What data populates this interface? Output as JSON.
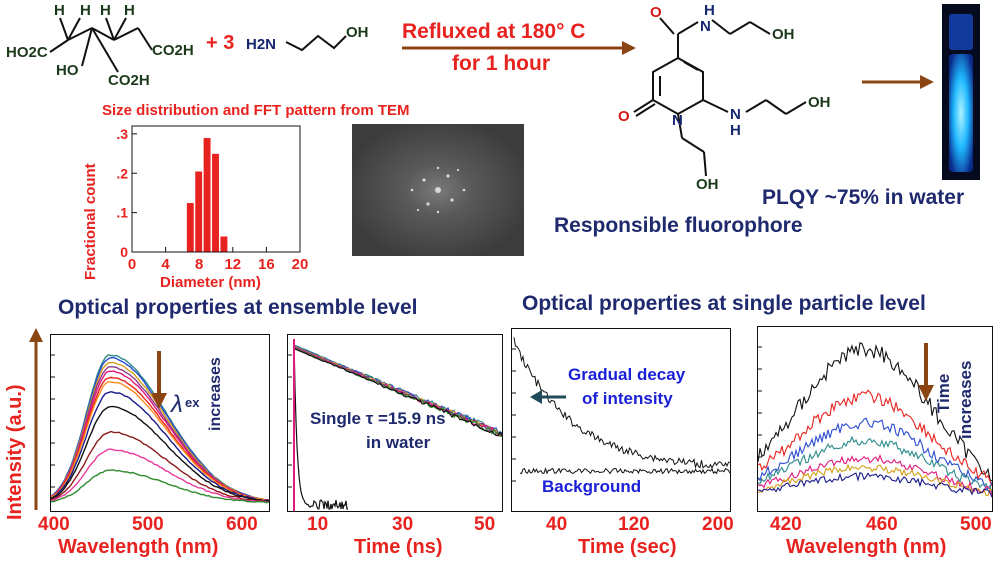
{
  "reaction": {
    "reagent_plus": "+ 3",
    "condition_line1": "Refluxed at 180° C",
    "condition_line2": "for 1 hour"
  },
  "citric_acid": {
    "h1": "H",
    "h2": "H",
    "h3": "H",
    "h4": "H",
    "ho2c": "HO2C",
    "oh": "HO",
    "co2h_right": "CO2H",
    "co2h_bottom": "CO2H"
  },
  "ethanolamine": {
    "h2n": "H2N",
    "oh": "OH"
  },
  "fluorophore": {
    "o_top": "O",
    "n_h": "H",
    "n": "N",
    "oh_top": "OH",
    "o_left": "O",
    "n_ring": "N",
    "n_h2": "H",
    "n2": "N",
    "oh_right": "OH",
    "oh_bottom": "OH",
    "caption": "Responsible fluorophore"
  },
  "vial": {
    "plqy": "PLQY ~75% in water"
  },
  "tem": {
    "title": "Size distribution and FFT pattern from TEM"
  },
  "histogram": {
    "ylabel": "Fractional count",
    "xlabel": "Diameter (nm)",
    "xticks": [
      "0",
      "4",
      "8",
      "12",
      "16",
      "20"
    ],
    "yticks": [
      "0",
      ".1",
      ".2",
      ".3"
    ]
  },
  "ensemble_title": "Optical properties at ensemble level",
  "single_title": "Optical properties at single particle level",
  "y_axis_label": "Intensity (a.u.)",
  "panel1": {
    "xticks": [
      "400",
      "500",
      "600"
    ],
    "xlabel": "Wavelength (nm)",
    "lambda": "λ",
    "ex": "ex",
    "increases": "increases"
  },
  "panel2": {
    "xticks": [
      "10",
      "30",
      "50"
    ],
    "xlabel": "Time (ns)",
    "line1": "Single τ =15.9 ns",
    "line2": "in water"
  },
  "panel3": {
    "xticks": [
      "40",
      "120",
      "200"
    ],
    "xlabel": "Time (sec)",
    "decay1": "Gradual decay",
    "decay2": "of intensity",
    "background": "Background"
  },
  "panel4": {
    "xticks": [
      "420",
      "460",
      "500"
    ],
    "xlabel": "Wavelength (nm)",
    "time": "Time",
    "increases": "increases"
  },
  "chart_data": [
    {
      "type": "bar",
      "title": "Size distribution and FFT pattern from TEM",
      "xlabel": "Diameter (nm)",
      "ylabel": "Fractional count",
      "xlim": [
        0,
        20
      ],
      "ylim": [
        0,
        0.32
      ],
      "x": [
        7,
        8,
        9,
        10,
        11
      ],
      "values": [
        0.125,
        0.205,
        0.29,
        0.25,
        0.04
      ]
    },
    {
      "type": "line",
      "xlabel": "Wavelength (nm)",
      "xlim": [
        385,
        625
      ],
      "series": [
        {
          "color": "#2e8b8b",
          "peak": 1.0
        },
        {
          "color": "#2a4bd0",
          "peak": 0.98
        },
        {
          "color": "#d4a017",
          "peak": 0.95
        },
        {
          "color": "#8b3a8b",
          "peak": 0.92
        },
        {
          "color": "#e0197d",
          "peak": 0.89
        },
        {
          "color": "#e8231f",
          "peak": 0.85
        },
        {
          "color": "#ff8c1a",
          "peak": 0.82
        },
        {
          "color": "#1a1a8b",
          "peak": 0.75
        },
        {
          "color": "#111111",
          "peak": 0.65
        },
        {
          "color": "#8b1a1a",
          "peak": 0.48
        },
        {
          "color": "#e83a9c",
          "peak": 0.36
        },
        {
          "color": "#2e8b2e",
          "peak": 0.22
        }
      ]
    },
    {
      "type": "line",
      "xlabel": "Time (ns)",
      "xlim": [
        3,
        53
      ]
    },
    {
      "type": "line",
      "xlabel": "Time (sec)",
      "xlim": [
        5,
        205
      ]
    },
    {
      "type": "line",
      "xlabel": "Wavelength (nm)",
      "xlim": [
        410,
        502
      ]
    }
  ],
  "colors": {
    "red": "#e8231f",
    "navy": "#1f2a6e",
    "arrow": "#8b4513",
    "vial": "#1fb8ff"
  }
}
